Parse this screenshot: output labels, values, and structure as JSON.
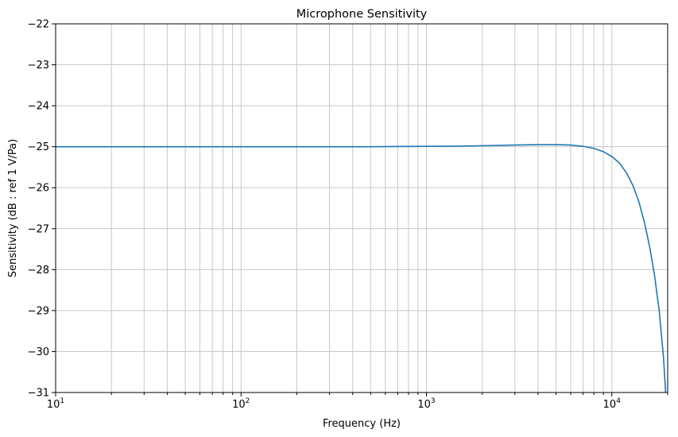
{
  "chart_data": {
    "type": "line",
    "title": "Microphone Sensitivity",
    "xlabel": "Frequency (Hz)",
    "ylabel": "Sensitivity (dB : ref 1 V/Pa)",
    "xscale": "log",
    "xlim": [
      10,
      20000
    ],
    "ylim": [
      -31,
      -22
    ],
    "grid": "both",
    "x_ticks": [
      {
        "value": 10,
        "base": "10",
        "exp": "1"
      },
      {
        "value": 100,
        "base": "10",
        "exp": "2"
      },
      {
        "value": 1000,
        "base": "10",
        "exp": "3"
      },
      {
        "value": 10000,
        "base": "10",
        "exp": "4"
      }
    ],
    "y_ticks": [
      {
        "value": -22,
        "label": "−22"
      },
      {
        "value": -23,
        "label": "−23"
      },
      {
        "value": -24,
        "label": "−24"
      },
      {
        "value": -25,
        "label": "−25"
      },
      {
        "value": -26,
        "label": "−26"
      },
      {
        "value": -27,
        "label": "−27"
      },
      {
        "value": -28,
        "label": "−28"
      },
      {
        "value": -29,
        "label": "−29"
      },
      {
        "value": -30,
        "label": "−30"
      },
      {
        "value": -31,
        "label": "−31"
      }
    ],
    "line_color": "#1f77b4",
    "grid_color": "#c8c8c8",
    "series": [
      {
        "x": [
          10,
          20,
          50,
          100,
          200,
          500,
          1000,
          1500,
          2000,
          3000,
          4000,
          5000,
          6000,
          7000,
          8000,
          9000,
          10000,
          11000,
          12000,
          13000,
          14000,
          15000,
          16000,
          17000,
          18000,
          19000,
          19500
        ],
        "y": [
          -25.0,
          -25.0,
          -25.0,
          -25.0,
          -25.0,
          -25.0,
          -24.99,
          -24.985,
          -24.975,
          -24.96,
          -24.95,
          -24.95,
          -24.96,
          -24.99,
          -25.04,
          -25.12,
          -25.24,
          -25.4,
          -25.64,
          -25.95,
          -26.35,
          -26.85,
          -27.45,
          -28.15,
          -29.0,
          -30.15,
          -31.0
        ]
      }
    ]
  }
}
